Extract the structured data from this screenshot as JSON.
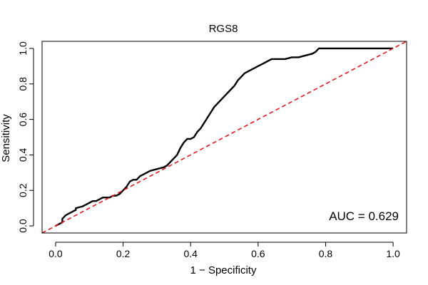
{
  "chart_data": {
    "type": "line",
    "title": "RGS8",
    "xlabel": "1 − Specificity",
    "ylabel": "Sensitivity",
    "xlim": [
      -0.04,
      1.04
    ],
    "ylim": [
      -0.04,
      1.04
    ],
    "xticks": [
      0.0,
      0.2,
      0.4,
      0.6,
      0.8,
      1.0
    ],
    "xtick_labels": [
      "0.0",
      "0.2",
      "0.4",
      "0.6",
      "0.8",
      "1.0"
    ],
    "yticks": [
      0.0,
      0.2,
      0.4,
      0.6,
      0.8,
      1.0
    ],
    "ytick_labels": [
      "0.0",
      "0.2",
      "0.4",
      "0.6",
      "0.8",
      "1.0"
    ],
    "grid": false,
    "annotation": "AUC = 0.629",
    "colors": {
      "roc": "#000000",
      "reference": "#e41a1c"
    },
    "series": [
      {
        "name": "ROC",
        "style": "solid",
        "x": [
          0.0,
          0.01,
          0.02,
          0.02,
          0.03,
          0.04,
          0.05,
          0.06,
          0.06,
          0.08,
          0.09,
          0.1,
          0.11,
          0.12,
          0.13,
          0.14,
          0.15,
          0.16,
          0.17,
          0.18,
          0.19,
          0.2,
          0.21,
          0.22,
          0.23,
          0.24,
          0.25,
          0.26,
          0.28,
          0.3,
          0.32,
          0.33,
          0.34,
          0.35,
          0.36,
          0.37,
          0.38,
          0.39,
          0.4,
          0.41,
          0.42,
          0.43,
          0.44,
          0.45,
          0.46,
          0.47,
          0.48,
          0.49,
          0.5,
          0.51,
          0.52,
          0.53,
          0.54,
          0.55,
          0.56,
          0.57,
          0.58,
          0.59,
          0.6,
          0.61,
          0.62,
          0.63,
          0.64,
          0.66,
          0.68,
          0.7,
          0.72,
          0.74,
          0.76,
          0.77,
          0.78,
          0.8,
          0.85,
          0.9,
          0.95,
          1.0
        ],
        "y": [
          0.0,
          0.01,
          0.02,
          0.04,
          0.06,
          0.07,
          0.08,
          0.09,
          0.1,
          0.11,
          0.12,
          0.13,
          0.14,
          0.14,
          0.15,
          0.16,
          0.16,
          0.16,
          0.17,
          0.17,
          0.18,
          0.2,
          0.22,
          0.25,
          0.26,
          0.26,
          0.28,
          0.29,
          0.31,
          0.32,
          0.33,
          0.34,
          0.36,
          0.38,
          0.4,
          0.44,
          0.47,
          0.49,
          0.49,
          0.5,
          0.53,
          0.55,
          0.58,
          0.61,
          0.64,
          0.67,
          0.69,
          0.71,
          0.73,
          0.75,
          0.77,
          0.79,
          0.82,
          0.84,
          0.86,
          0.87,
          0.88,
          0.89,
          0.9,
          0.91,
          0.92,
          0.93,
          0.94,
          0.94,
          0.94,
          0.95,
          0.95,
          0.96,
          0.97,
          0.98,
          1.0,
          1.0,
          1.0,
          1.0,
          1.0,
          1.0
        ]
      },
      {
        "name": "Reference",
        "style": "dashed",
        "x": [
          -0.04,
          1.04
        ],
        "y": [
          -0.04,
          1.04
        ]
      }
    ]
  }
}
